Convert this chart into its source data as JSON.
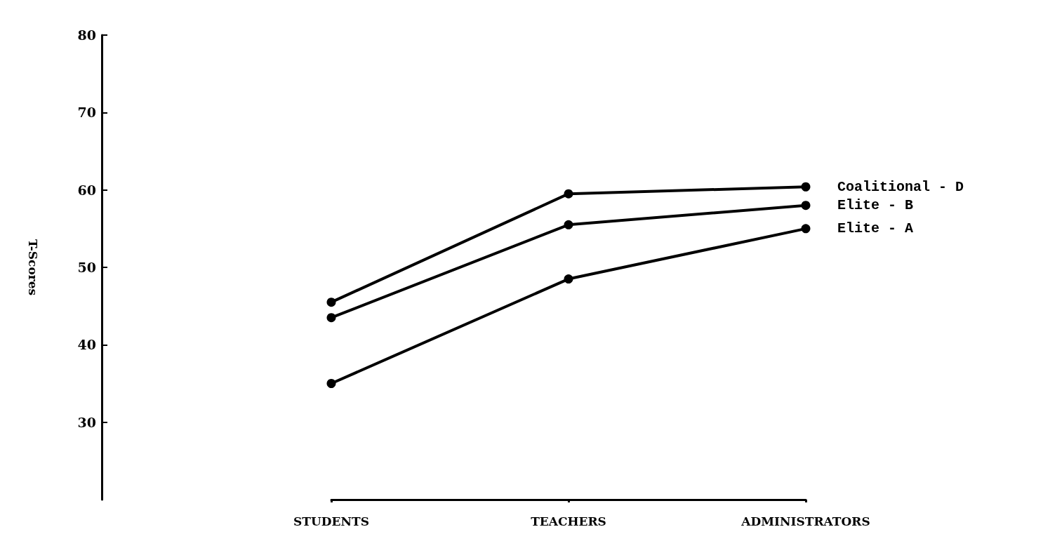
{
  "chart_data": {
    "type": "line",
    "ylabel": "T-Scores",
    "categories": [
      "STUDENTS",
      "TEACHERS",
      "ADMINISTRATORS"
    ],
    "series": [
      {
        "name": "Coalitional - D",
        "color": "#000000",
        "values": [
          45.5,
          59.5,
          60.4
        ]
      },
      {
        "name": "Elite - B",
        "color": "#000000",
        "values": [
          43.5,
          55.5,
          58
        ]
      },
      {
        "name": "Elite - A",
        "color": "#000000",
        "values": [
          35,
          48.5,
          55
        ]
      }
    ],
    "ylim": [
      20,
      80
    ],
    "yticks": [
      30,
      40,
      50,
      60,
      70,
      80
    ],
    "grid": false,
    "legend": false,
    "marker": "circle",
    "line_style": "solid"
  }
}
